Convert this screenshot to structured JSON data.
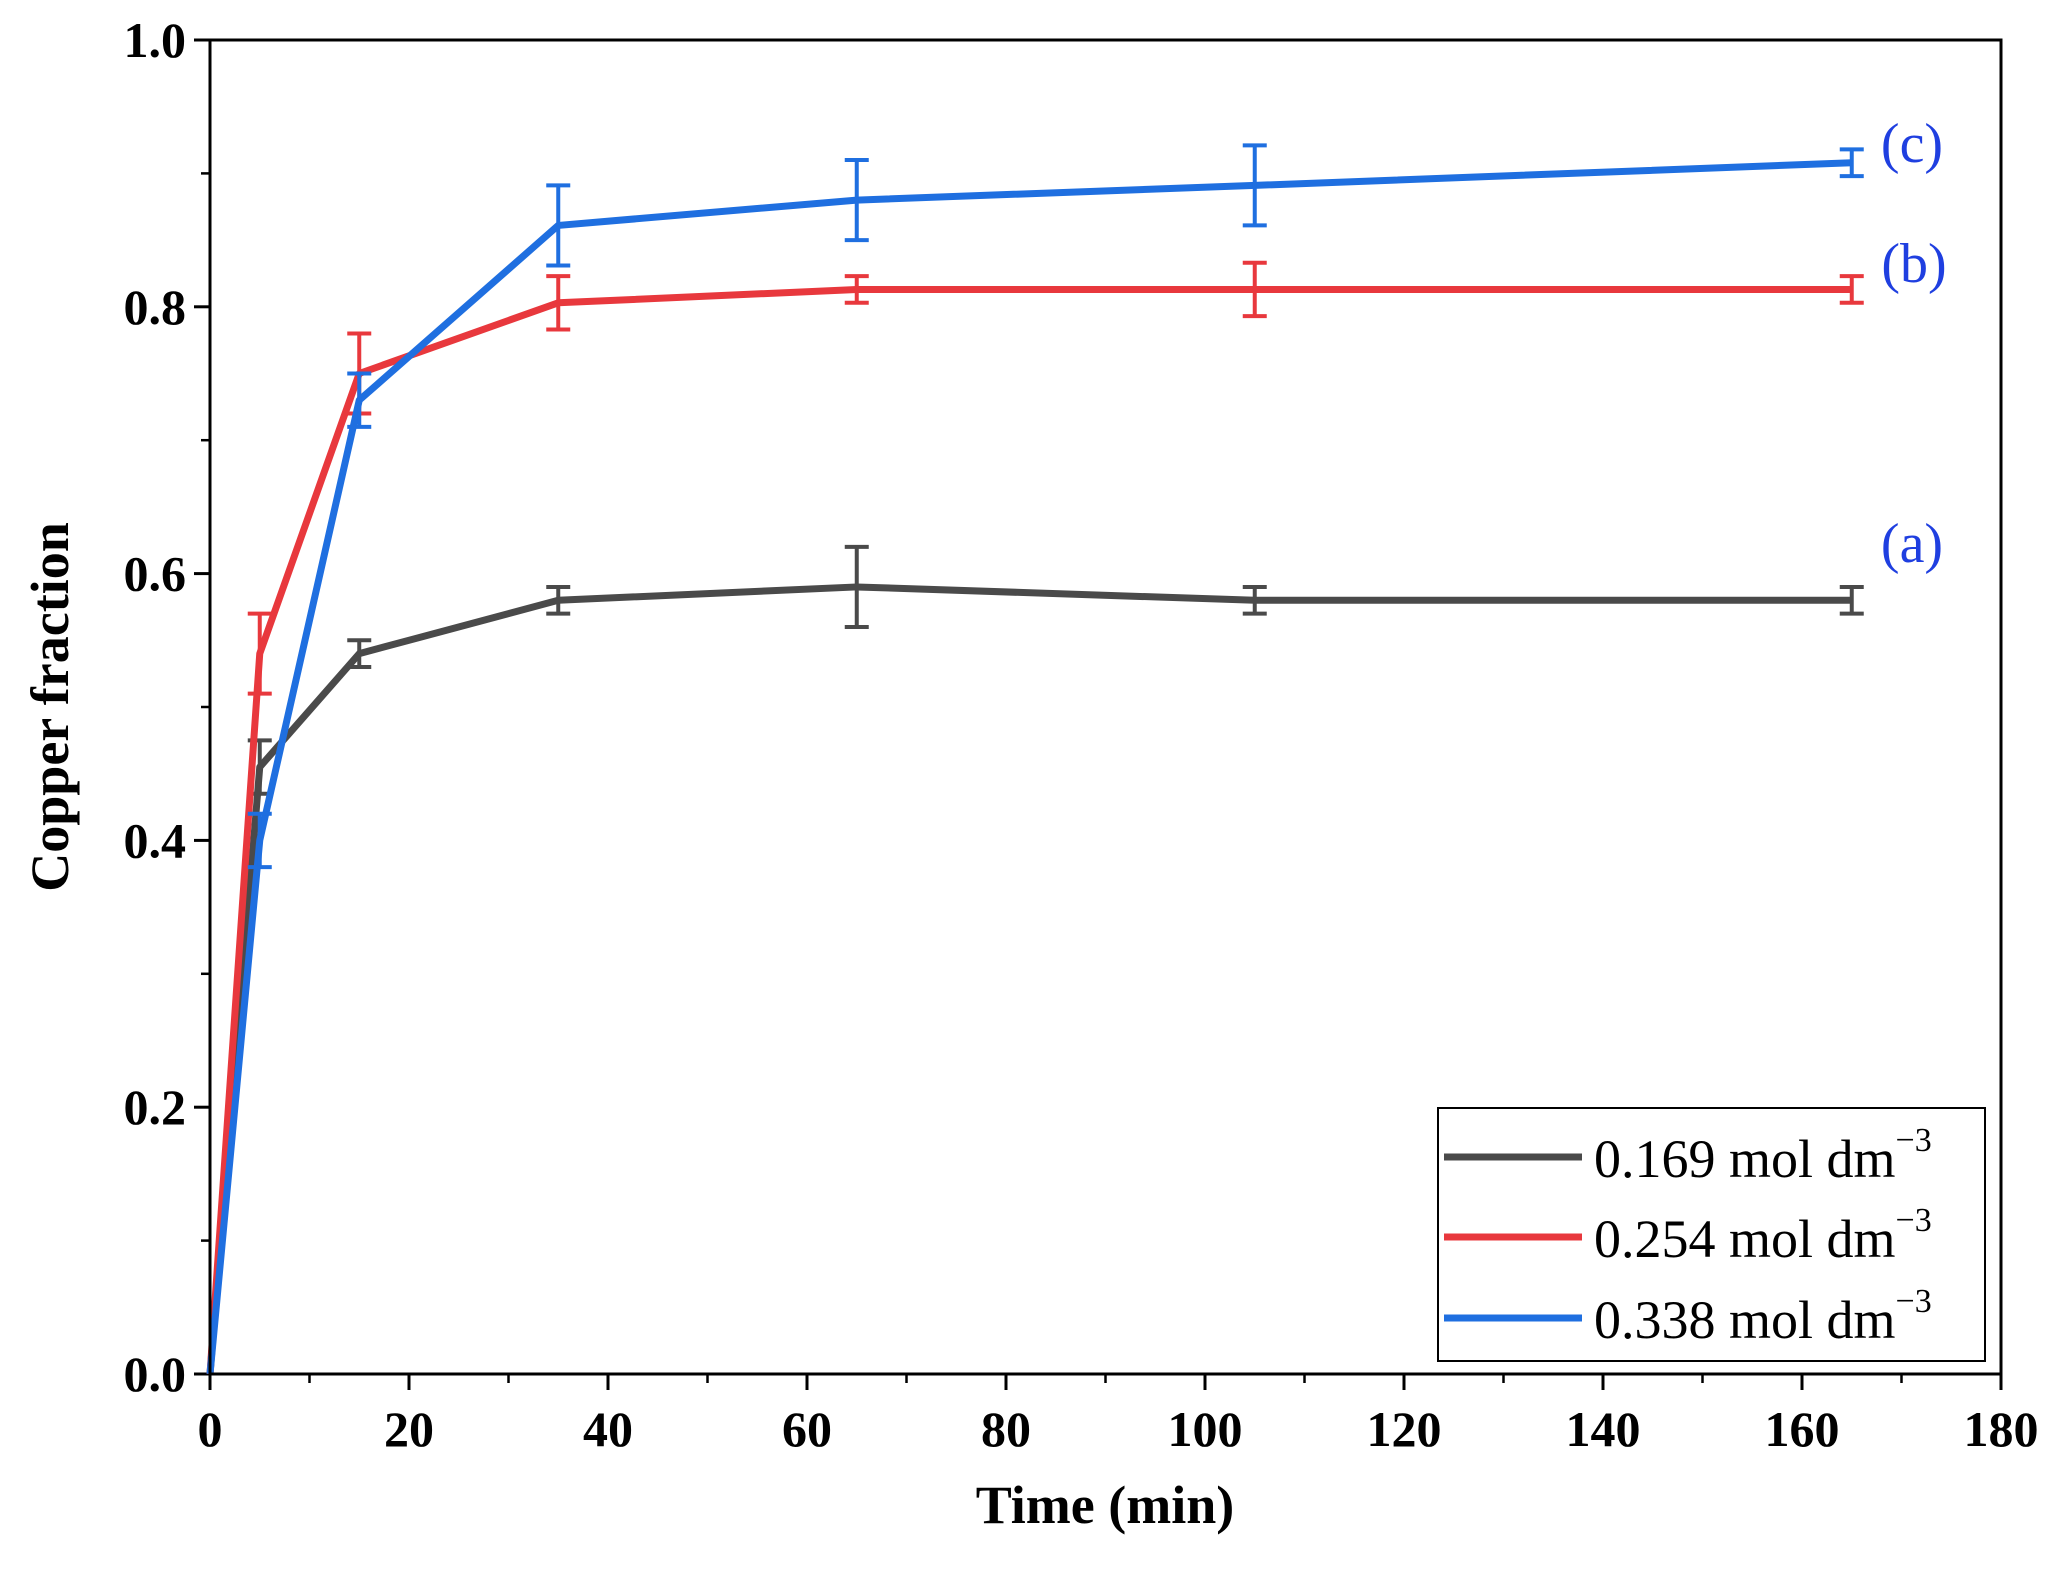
{
  "chart_data": {
    "type": "line",
    "title": "",
    "xlabel": "Time (min)",
    "ylabel": "Copper fraction",
    "xlim": [
      0,
      180
    ],
    "ylim": [
      0,
      1.0
    ],
    "xticks": [
      0,
      20,
      40,
      60,
      80,
      100,
      120,
      140,
      160,
      180
    ],
    "yticks": [
      0.0,
      0.2,
      0.4,
      0.6,
      0.8,
      1.0
    ],
    "xtick_labels": [
      "0",
      "20",
      "40",
      "60",
      "80",
      "100",
      "120",
      "140",
      "160",
      "180"
    ],
    "ytick_labels": [
      "0.0",
      "0.2",
      "0.4",
      "0.6",
      "0.8",
      "1.0"
    ],
    "x": [
      0,
      5,
      15,
      35,
      65,
      105,
      165
    ],
    "series": [
      {
        "name": "0.169 mol dm",
        "name_sup": "−3",
        "color": "#4a4a4a",
        "values": [
          0.0,
          0.455,
          0.54,
          0.58,
          0.59,
          0.58,
          0.58
        ],
        "errors": [
          0,
          0.02,
          0.01,
          0.01,
          0.03,
          0.01,
          0.01
        ],
        "annotation": "(a)"
      },
      {
        "name": "0.254 mol dm",
        "name_sup": "−3",
        "color": "#e8383d",
        "values": [
          0.0,
          0.54,
          0.75,
          0.803,
          0.813,
          0.813,
          0.813
        ],
        "errors": [
          0,
          0.03,
          0.03,
          0.02,
          0.01,
          0.02,
          0.01
        ],
        "annotation": "(b)"
      },
      {
        "name": "0.338 mol dm",
        "name_sup": "−3",
        "color": "#1f6fe0",
        "values": [
          0.0,
          0.4,
          0.73,
          0.861,
          0.88,
          0.891,
          0.908
        ],
        "errors": [
          0,
          0.02,
          0.02,
          0.03,
          0.03,
          0.03,
          0.01
        ],
        "annotation": "(c)"
      }
    ],
    "annotation_color": "#1f3fe0",
    "legend": "bottom-right"
  }
}
